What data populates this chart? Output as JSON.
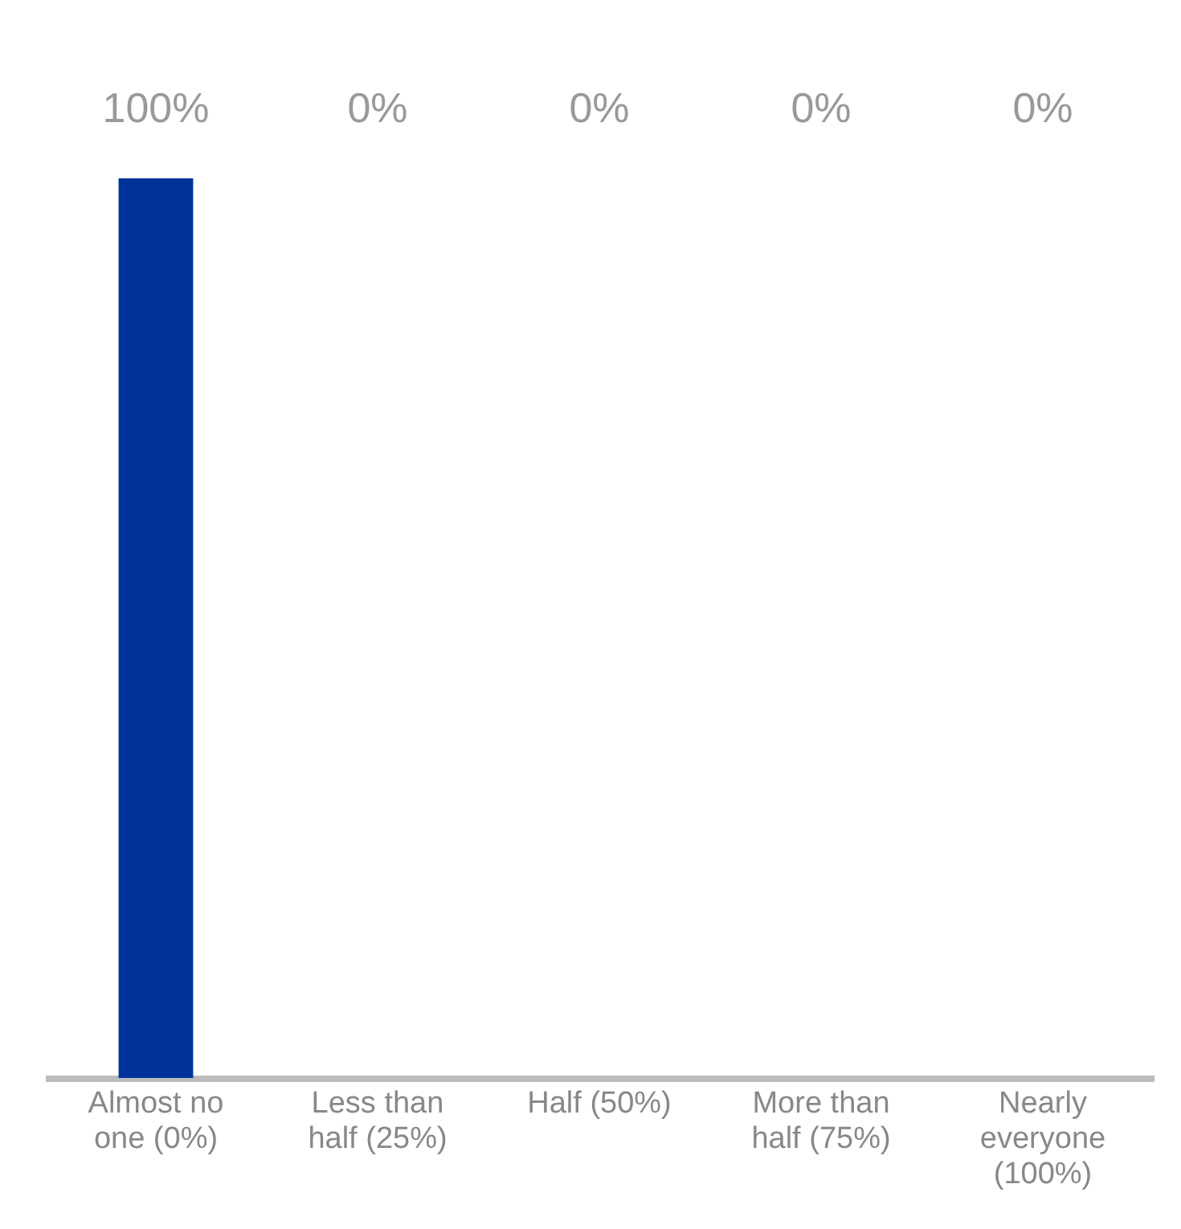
{
  "chart_data": {
    "type": "bar",
    "categories": [
      "Almost no one (0%)",
      "Less than half (25%)",
      "Half (50%)",
      "More than half (75%)",
      "Nearly everyone (100%)"
    ],
    "values": [
      100,
      0,
      0,
      0,
      0
    ],
    "value_labels": [
      "100%",
      "0%",
      "0%",
      "0%",
      "0%"
    ],
    "color": "#00339a",
    "grid": false
  }
}
